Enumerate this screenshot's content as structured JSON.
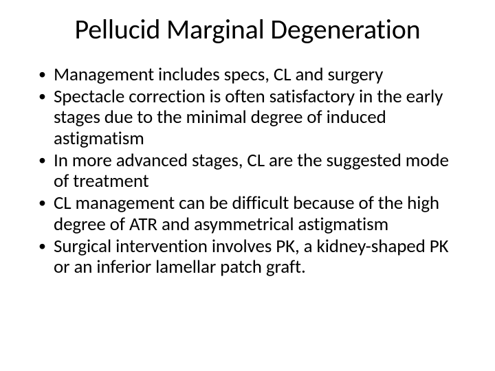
{
  "slide": {
    "title": "Pellucid Marginal Degeneration",
    "bullets": [
      "Management includes specs, CL and surgery",
      "Spectacle correction is often satisfactory in the early stages due to the minimal degree of induced astigmatism",
      "In more advanced stages, CL are the suggested mode of treatment",
      "CL management can be difficult because of the high degree of ATR and asymmetrical astigmatism",
      "Surgical intervention involves PK, a kidney-shaped PK or an inferior lamellar patch graft."
    ],
    "colors": {
      "background": "#ffffff",
      "text": "#000000"
    },
    "typography": {
      "title_fontsize": 40,
      "body_fontsize": 27,
      "font_family": "Calibri"
    }
  }
}
